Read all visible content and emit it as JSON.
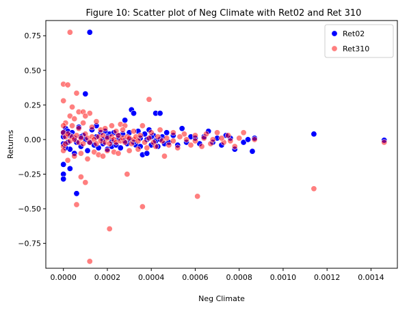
{
  "chart_data": {
    "type": "scatter",
    "title": "Figure 10: Scatter plot of Neg Climate with Ret02 and Ret 310",
    "xlabel": "Neg Climate",
    "ylabel": "Returns",
    "xlim": [
      -8e-05,
      0.00152
    ],
    "ylim": [
      -0.93,
      0.86
    ],
    "x_ticks": [
      0,
      0.0002,
      0.0004,
      0.0006,
      0.0008,
      0.001,
      0.0012,
      0.0014
    ],
    "x_tick_labels": [
      "0.0000",
      "0.0002",
      "0.0004",
      "0.0006",
      "0.0008",
      "0.0010",
      "0.0012",
      "0.0014"
    ],
    "y_ticks": [
      -0.75,
      -0.5,
      -0.25,
      0,
      0.25,
      0.5,
      0.75
    ],
    "y_tick_labels": [
      "−0.75",
      "−0.50",
      "−0.25",
      "0.00",
      "0.25",
      "0.50",
      "0.75"
    ],
    "grid": false,
    "legend_position": "top-right",
    "series": [
      {
        "name": "Ret02",
        "color": "#0000ff",
        "opacity": 1,
        "points": [
          [
            0.00012,
            0.775
          ],
          [
            0.0001,
            0.33
          ],
          [
            0.00031,
            0.215
          ],
          [
            0.00032,
            0.19
          ],
          [
            0.00042,
            0.19
          ],
          [
            0.00044,
            0.19
          ],
          [
            0.0,
            -0.25
          ],
          [
            0.0,
            -0.285
          ],
          [
            0.0,
            -0.18
          ],
          [
            3e-05,
            -0.21
          ],
          [
            6e-05,
            -0.39
          ],
          [
            0.00114,
            0.04
          ],
          [
            0.00146,
            -0.005
          ],
          [
            0.00086,
            -0.085
          ],
          [
            0.00082,
            -0.02
          ],
          [
            1e-05,
            0.08
          ],
          [
            2e-05,
            0.06
          ],
          [
            3e-05,
            -0.07
          ],
          [
            4e-05,
            0.05
          ],
          [
            5e-05,
            -0.1
          ],
          [
            7e-05,
            0.09
          ],
          [
            8e-05,
            -0.05
          ],
          [
            9e-05,
            0.03
          ],
          [
            0.00011,
            -0.08
          ],
          [
            0.00013,
            0.07
          ],
          [
            0.00014,
            -0.04
          ],
          [
            0.00015,
            0.1
          ],
          [
            0.00016,
            -0.06
          ],
          [
            0.00017,
            0.05
          ],
          [
            0.00018,
            -0.03
          ],
          [
            0.00019,
            0.06
          ],
          [
            0.0002,
            -0.07
          ],
          [
            0.00021,
            0.04
          ],
          [
            0.00022,
            -0.05
          ],
          [
            0.00023,
            0.05
          ],
          [
            0.00024,
            -0.04
          ],
          [
            0.00025,
            0.03
          ],
          [
            0.00026,
            -0.06
          ],
          [
            0.00027,
            0.04
          ],
          [
            0.00028,
            0.14
          ],
          [
            0.00029,
            -0.03
          ],
          [
            0.0003,
            0.05
          ],
          [
            0.00033,
            -0.04
          ],
          [
            0.00034,
            0.06
          ],
          [
            0.00035,
            -0.05
          ],
          [
            0.00036,
            -0.11
          ],
          [
            0.00037,
            0.04
          ],
          [
            0.00038,
            -0.1
          ],
          [
            0.00039,
            0.07
          ],
          [
            0.0004,
            -0.04
          ],
          [
            0.00041,
            0.03
          ],
          [
            0.00043,
            -0.05
          ],
          [
            0.00045,
            0.02
          ],
          [
            0.00046,
            -0.03
          ],
          [
            0.00047,
            0.05
          ],
          [
            0.00048,
            -0.02
          ],
          [
            0.0005,
            0.03
          ],
          [
            0.00052,
            -0.04
          ],
          [
            0.00054,
            0.08
          ],
          [
            0.00056,
            -0.02
          ],
          [
            0.00058,
            0.02
          ],
          [
            0.0006,
            0.01
          ],
          [
            0.00062,
            -0.03
          ],
          [
            0.00064,
            0.02
          ],
          [
            0.00066,
            0.06
          ],
          [
            0.00068,
            -0.02
          ],
          [
            0.0007,
            0.01
          ],
          [
            0.00072,
            -0.04
          ],
          [
            0.00074,
            0.03
          ],
          [
            0.00076,
            0.01
          ],
          [
            0.00078,
            -0.07
          ],
          [
            0.00084,
            0.0
          ],
          [
            0.00087,
            0.01
          ],
          [
            0.0,
            0.02
          ],
          [
            0.0,
            -0.03
          ],
          [
            0.0,
            0.05
          ],
          [
            1e-05,
            -0.06
          ],
          [
            2e-05,
            -0.02
          ],
          [
            3e-05,
            0.03
          ],
          [
            5e-05,
            0.01
          ],
          [
            6e-05,
            -0.02
          ],
          [
            8e-05,
            0.02
          ],
          [
            0.0001,
            0.0
          ],
          [
            0.00012,
            -0.02
          ],
          [
            0.00015,
            0.02
          ],
          [
            0.00018,
            0.0
          ],
          [
            0.0002,
            0.02
          ],
          [
            0.00022,
            -0.01
          ],
          [
            0.00025,
            0.01
          ],
          [
            0.00028,
            -0.01
          ],
          [
            0.0003,
            0.0
          ],
          [
            0.00032,
            -0.02
          ],
          [
            0.00035,
            0.01
          ],
          [
            0.00038,
            0.0
          ],
          [
            0.0004,
            0.02
          ],
          [
            0.00042,
            -0.01
          ],
          [
            0.00044,
            0.0
          ]
        ]
      },
      {
        "name": "Ret310",
        "color": "#ff0000",
        "opacity": 0.5,
        "points": [
          [
            3e-05,
            0.775
          ],
          [
            0.0,
            0.4
          ],
          [
            2e-05,
            0.395
          ],
          [
            0.0,
            0.28
          ],
          [
            6e-05,
            0.335
          ],
          [
            4e-05,
            0.235
          ],
          [
            3e-05,
            0.17
          ],
          [
            7e-05,
            0.2
          ],
          [
            9e-05,
            0.2
          ],
          [
            0.00012,
            0.19
          ],
          [
            0.0001,
            0.17
          ],
          [
            5e-05,
            0.15
          ],
          [
            0.00039,
            0.29
          ],
          [
            0.00026,
            0.11
          ],
          [
            0.00028,
            0.1
          ],
          [
            6e-05,
            -0.47
          ],
          [
            8e-05,
            -0.27
          ],
          [
            0.0001,
            -0.31
          ],
          [
            0.00012,
            -0.88
          ],
          [
            0.00021,
            -0.645
          ],
          [
            0.00036,
            -0.485
          ],
          [
            0.00061,
            -0.41
          ],
          [
            0.00114,
            -0.355
          ],
          [
            0.00029,
            -0.25
          ],
          [
            0.00146,
            -0.02
          ],
          [
            0.00087,
            0.0
          ],
          [
            0.00082,
            0.05
          ],
          [
            0.00046,
            -0.12
          ],
          [
            1e-05,
            0.12
          ],
          [
            2e-05,
            -0.15
          ],
          [
            4e-05,
            0.1
          ],
          [
            5e-05,
            -0.12
          ],
          [
            7e-05,
            0.08
          ],
          [
            8e-05,
            -0.1
          ],
          [
            9e-05,
            0.12
          ],
          [
            0.00011,
            -0.14
          ],
          [
            0.00013,
            0.09
          ],
          [
            0.00014,
            -0.09
          ],
          [
            0.00015,
            0.13
          ],
          [
            0.00016,
            -0.11
          ],
          [
            0.00017,
            0.07
          ],
          [
            0.00018,
            -0.12
          ],
          [
            0.00019,
            0.08
          ],
          [
            0.0002,
            -0.08
          ],
          [
            0.00022,
            0.1
          ],
          [
            0.00023,
            -0.09
          ],
          [
            0.00024,
            0.06
          ],
          [
            0.00025,
            -0.1
          ],
          [
            0.00027,
            0.07
          ],
          [
            0.0003,
            -0.08
          ],
          [
            0.00032,
            0.06
          ],
          [
            0.00034,
            -0.07
          ],
          [
            0.00036,
            0.1
          ],
          [
            0.00038,
            -0.06
          ],
          [
            0.0004,
            0.05
          ],
          [
            0.00042,
            -0.05
          ],
          [
            0.00044,
            0.07
          ],
          [
            0.00048,
            -0.04
          ],
          [
            0.0005,
            0.05
          ],
          [
            0.00052,
            -0.06
          ],
          [
            0.00055,
            0.04
          ],
          [
            0.00058,
            -0.04
          ],
          [
            0.0006,
            0.03
          ],
          [
            0.00063,
            -0.05
          ],
          [
            0.00065,
            0.04
          ],
          [
            0.00067,
            -0.03
          ],
          [
            0.0007,
            0.05
          ],
          [
            0.00073,
            -0.02
          ],
          [
            0.00075,
            0.03
          ],
          [
            0.00078,
            -0.05
          ],
          [
            0.0008,
            0.01
          ],
          [
            0.0,
            0.05
          ],
          [
            0.0,
            -0.05
          ],
          [
            0.0,
            0.1
          ],
          [
            0.0,
            -0.08
          ],
          [
            1e-05,
            0.02
          ],
          [
            1e-05,
            -0.03
          ],
          [
            2e-05,
            0.04
          ],
          [
            3e-05,
            -0.01
          ],
          [
            4e-05,
            0.02
          ],
          [
            5e-05,
            0.0
          ],
          [
            6e-05,
            0.03
          ],
          [
            7e-05,
            -0.02
          ],
          [
            8e-05,
            0.01
          ],
          [
            9e-05,
            -0.03
          ],
          [
            0.0001,
            0.04
          ],
          [
            0.00011,
            0.01
          ],
          [
            0.00012,
            -0.02
          ],
          [
            0.00013,
            0.02
          ],
          [
            0.00014,
            0.0
          ],
          [
            0.00015,
            -0.03
          ],
          [
            0.00016,
            0.02
          ],
          [
            0.00017,
            -0.01
          ],
          [
            0.00018,
            0.03
          ],
          [
            0.00019,
            -0.02
          ],
          [
            0.0002,
            0.01
          ],
          [
            0.00021,
            -0.03
          ],
          [
            0.00022,
            0.02
          ],
          [
            0.00023,
            0.0
          ],
          [
            0.00024,
            -0.02
          ],
          [
            0.00025,
            0.03
          ],
          [
            0.00026,
            -0.01
          ],
          [
            0.00027,
            0.01
          ],
          [
            0.00028,
            -0.02
          ],
          [
            0.00029,
            0.02
          ],
          [
            0.0003,
            0.01
          ],
          [
            0.00031,
            -0.03
          ],
          [
            0.00032,
            0.0
          ],
          [
            0.00033,
            0.02
          ],
          [
            0.00034,
            -0.01
          ],
          [
            0.00035,
            0.03
          ],
          [
            0.00037,
            -0.02
          ],
          [
            0.00039,
            0.01
          ],
          [
            0.00041,
            -0.02
          ],
          [
            0.00043,
            0.02
          ],
          [
            0.00045,
            -0.01
          ],
          [
            0.00047,
            0.01
          ],
          [
            0.0005,
            -0.01
          ],
          [
            0.00053,
            0.02
          ],
          [
            0.00056,
            0.0
          ],
          [
            0.0006,
            -0.01
          ],
          [
            0.00064,
            0.01
          ],
          [
            0.00068,
            0.0
          ],
          [
            0.00072,
            0.01
          ],
          [
            0.00076,
            -0.01
          ]
        ]
      }
    ]
  }
}
